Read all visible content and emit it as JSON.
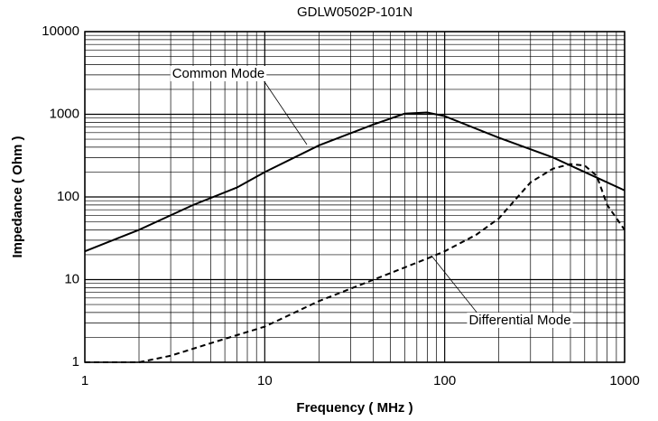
{
  "chart_data": {
    "type": "line",
    "title": "GDLW0502P-101N",
    "x_label": "Frequency ( MHz )",
    "y_label": "Impedance ( Ohm )",
    "xscale": "log",
    "yscale": "log",
    "xlim": [
      1,
      1000
    ],
    "ylim": [
      1,
      10000
    ],
    "xticks": [
      1,
      10,
      100,
      1000
    ],
    "yticks": [
      1,
      10,
      100,
      1000,
      10000
    ],
    "grid": true,
    "minor_grid": true,
    "series": [
      {
        "name": "Common Mode",
        "color": "#000000",
        "dash": "solid",
        "x": [
          1,
          2,
          4,
          7,
          10,
          20,
          40,
          60,
          80,
          100,
          200,
          400,
          600,
          1000
        ],
        "values": [
          22,
          40,
          80,
          130,
          200,
          420,
          750,
          1020,
          1050,
          950,
          520,
          300,
          200,
          120
        ]
      },
      {
        "name": "Differential Mode",
        "color": "#000000",
        "dash": "dashed",
        "x": [
          1,
          2,
          3,
          5,
          10,
          20,
          50,
          80,
          100,
          150,
          200,
          300,
          400,
          500,
          600,
          700,
          800,
          1000
        ],
        "values": [
          1.0,
          1.0,
          1.2,
          1.7,
          2.7,
          5.5,
          12,
          18,
          22,
          35,
          55,
          150,
          220,
          250,
          240,
          180,
          80,
          40
        ]
      }
    ]
  }
}
